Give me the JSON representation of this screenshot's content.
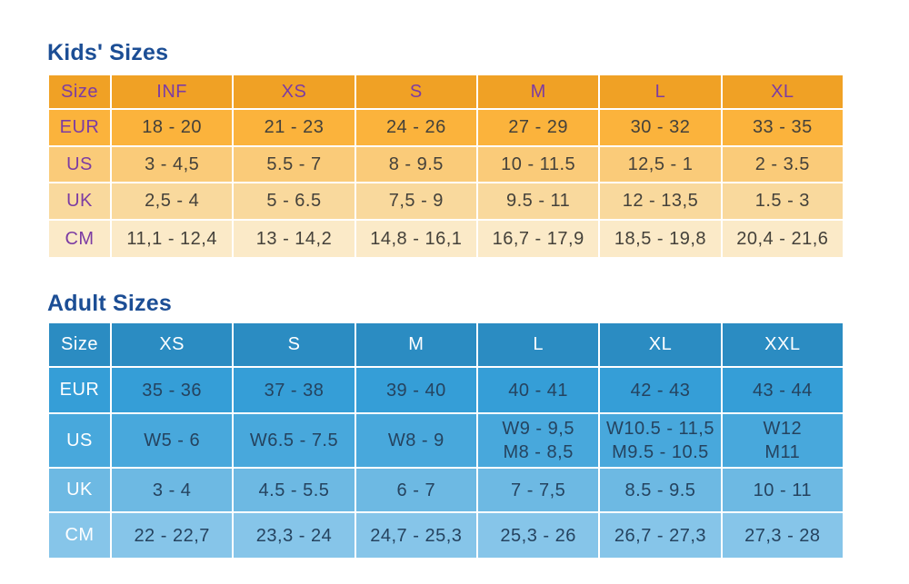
{
  "colors": {
    "title_blue": "#1c4e95",
    "kids_label_purple": "#7c3ca3",
    "kids_header_bg": "#f0a125",
    "kids_row_bgs": [
      "#fbb33c",
      "#facb79",
      "#f9d99d",
      "#fbeac8"
    ],
    "kids_data_text": "#44413a",
    "adult_header_bg": "#2b8cc2",
    "adult_row_bgs": [
      "#359ed7",
      "#48a8dc",
      "#6db9e3",
      "#86c5e9"
    ],
    "adult_label_text": "#ffffff",
    "adult_data_text": "#25435f",
    "grid_line": "#ffffff"
  },
  "chart_data": [
    {
      "type": "table",
      "title": "Kids' Sizes",
      "columns": [
        "Size",
        "INF",
        "XS",
        "S",
        "M",
        "L",
        "XL"
      ],
      "rows": [
        {
          "label": "EUR",
          "values": [
            "18 - 20",
            "21 - 23",
            "24 - 26",
            "27 - 29",
            "30 - 32",
            "33 - 35"
          ]
        },
        {
          "label": "US",
          "values": [
            "3 - 4,5",
            "5.5 - 7",
            "8 - 9.5",
            "10 - 11.5",
            "12,5 - 1",
            "2 - 3.5"
          ]
        },
        {
          "label": "UK",
          "values": [
            "2,5 - 4",
            "5 - 6.5",
            "7,5 - 9",
            "9.5 - 11",
            "12 - 13,5",
            "1.5 - 3"
          ]
        },
        {
          "label": "CM",
          "values": [
            "11,1 - 12,4",
            "13 - 14,2",
            "14,8 - 16,1",
            "16,7 - 17,9",
            "18,5 - 19,8",
            "20,4 - 21,6"
          ]
        }
      ]
    },
    {
      "type": "table",
      "title": "Adult Sizes",
      "columns": [
        "Size",
        "XS",
        "S",
        "M",
        "L",
        "XL",
        "XXL"
      ],
      "rows": [
        {
          "label": "EUR",
          "values": [
            "35 - 36",
            "37 - 38",
            "39 - 40",
            "40 - 41",
            "42 - 43",
            "43 - 44"
          ]
        },
        {
          "label": "US",
          "values": [
            "W5 - 6",
            "W6.5 - 7.5",
            "W8 - 9",
            "W9 - 9,5\nM8 - 8,5",
            "W10.5 - 11,5\nM9.5 - 10.5",
            "W12\nM11"
          ]
        },
        {
          "label": "UK",
          "values": [
            "3 - 4",
            "4.5 - 5.5",
            "6 - 7",
            "7 - 7,5",
            "8.5 - 9.5",
            "10 - 11"
          ]
        },
        {
          "label": "CM",
          "values": [
            "22 - 22,7",
            "23,3 - 24",
            "24,7 - 25,3",
            "25,3 - 26",
            "26,7 - 27,3",
            "27,3 - 28"
          ]
        }
      ]
    }
  ]
}
